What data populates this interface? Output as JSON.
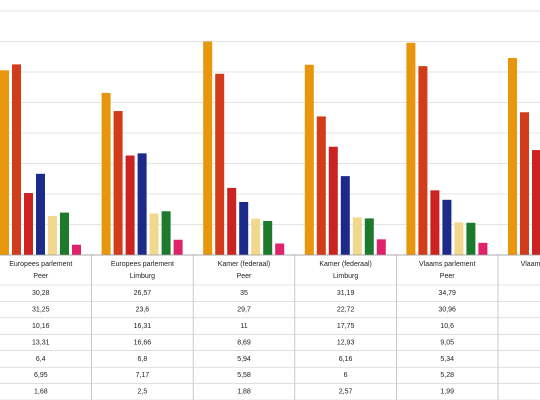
{
  "chart_data": {
    "type": "bar",
    "categories": [
      "Europees parlement",
      "Europees parlement",
      "Kamer (federaal)",
      "Kamer (federaal)",
      "Vlaams parlement",
      "Vlaams parlement"
    ],
    "subcategories": [
      "Peer",
      "Limburg",
      "Peer",
      "Limburg",
      "Peer",
      null
    ],
    "series": [
      {
        "color": "#e8960c",
        "values": [
          30.28,
          26.57,
          35,
          31.19,
          34.79,
          32.3
        ],
        "value_labels": [
          "30,28",
          "26,57",
          "35",
          "31,19",
          "34,79",
          null
        ]
      },
      {
        "color": "#d23c1a",
        "values": [
          31.25,
          23.6,
          29.7,
          22.72,
          30.96,
          23.4
        ],
        "value_labels": [
          "31,25",
          "23,6",
          "29,7",
          "22,72",
          "30,96",
          null
        ]
      },
      {
        "color": "#cc2222",
        "values": [
          10.16,
          16.31,
          11,
          17.75,
          10.6,
          17.2
        ],
        "value_labels": [
          "10,16",
          "16,31",
          "11",
          "17,75",
          "10,6",
          null
        ]
      },
      {
        "color": "#1c2a8a",
        "values": [
          13.31,
          16.66,
          8.69,
          12.93,
          9.05,
          null
        ],
        "value_labels": [
          "13,31",
          "16,66",
          "8,69",
          "12,93",
          "9,05",
          null
        ]
      },
      {
        "color": "#f0d88e",
        "values": [
          6.4,
          6.8,
          5.94,
          6.16,
          5.34,
          null
        ],
        "value_labels": [
          "6,4",
          "6,8",
          "5,94",
          "6,16",
          "5,34",
          null
        ]
      },
      {
        "color": "#1d7a2c",
        "values": [
          6.95,
          7.17,
          5.58,
          6,
          5.28,
          null
        ],
        "value_labels": [
          "6,95",
          "7,17",
          "5,58",
          "6",
          "5,28",
          null
        ]
      },
      {
        "color": "#e0226c",
        "values": [
          1.68,
          2.5,
          1.88,
          2.57,
          1.99,
          null
        ],
        "value_labels": [
          "1,68",
          "2,5",
          "1,88",
          "2,57",
          "1,99",
          null
        ]
      }
    ],
    "ylim": [
      0,
      40
    ],
    "yticks": [
      0,
      5,
      10,
      15,
      20,
      25,
      30,
      35,
      40
    ],
    "grid": true
  }
}
